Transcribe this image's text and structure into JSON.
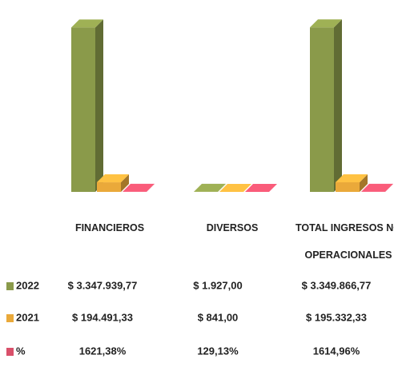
{
  "chart_data": {
    "type": "bar",
    "categories": [
      "FINANCIEROS",
      "DIVERSOS",
      "TOTAL INGRESOS NO OPERACIONALES"
    ],
    "series": [
      {
        "name": "2022",
        "color": "#8a9a4a",
        "values": [
          3347939.77,
          1927.0,
          3349866.77
        ],
        "value_labels": [
          "$ 3.347.939,77",
          "$ 1.927,00",
          "$ 3.349.866,77"
        ]
      },
      {
        "name": "2021",
        "color": "#eaa93a",
        "values": [
          194491.33,
          841.0,
          195332.33
        ],
        "value_labels": [
          "$ 194.491,33",
          "$ 841,00",
          "$ 195.332,33"
        ]
      },
      {
        "name": "%",
        "color": "#d9506a",
        "values": [
          1621.38,
          129.13,
          1614.96
        ],
        "value_labels": [
          "1621,38%",
          "129,13%",
          "1614,96%"
        ]
      }
    ],
    "ylim": [
      0,
      3500000
    ]
  }
}
